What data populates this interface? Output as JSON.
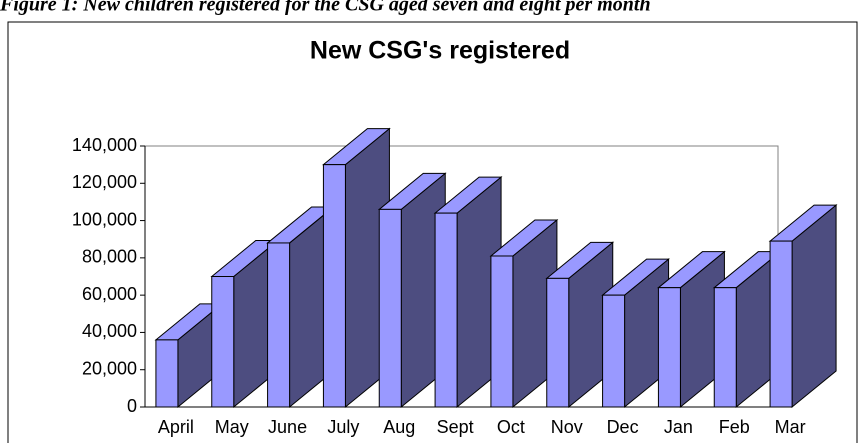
{
  "caption": "Figure 1: New children registered for the CSG aged seven and eight per month",
  "chart_data": {
    "type": "bar3d",
    "title": "New CSG's registered",
    "categories": [
      "April",
      "May",
      "June",
      "July",
      "Aug",
      "Sept",
      "Oct",
      "Nov",
      "Dec",
      "Jan",
      "Feb",
      "Mar"
    ],
    "values": [
      36000,
      70000,
      88000,
      130000,
      106000,
      104000,
      81000,
      69000,
      60000,
      64000,
      64000,
      89000
    ],
    "color": "#9999ff",
    "side_color": "#4d4d80",
    "ylim": [
      0,
      140000
    ],
    "yticks": [
      0,
      {
        "value": 20000,
        "label": "20,000"
      },
      {
        "value": 40000,
        "label": "40,000"
      },
      {
        "value": 60000,
        "label": "60,000"
      },
      {
        "value": 80000,
        "label": "80,000"
      },
      {
        "value": 100000,
        "label": "100,000"
      },
      {
        "value": 120000,
        "label": "120,000"
      },
      {
        "value": 140000,
        "label": "140,000"
      }
    ]
  }
}
